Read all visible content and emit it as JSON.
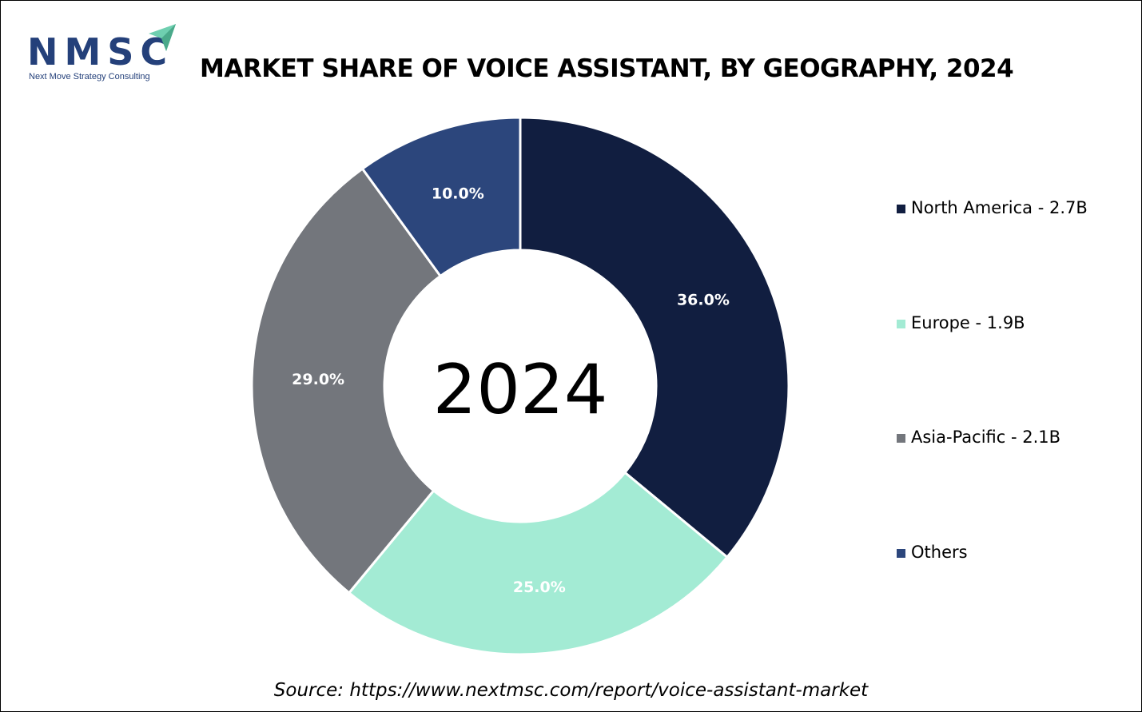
{
  "logo": {
    "name": "NMSC",
    "tagline": "Next Move Strategy Consulting"
  },
  "title": "MARKET SHARE OF VOICE ASSISTANT, BY GEOGRAPHY, 2024",
  "center_label": "2024",
  "source": "Source: https://www.nextmsc.com/report/voice-assistant-market",
  "chart_data": {
    "type": "pie",
    "variant": "donut",
    "title": "MARKET SHARE OF VOICE ASSISTANT, BY GEOGRAPHY, 2024",
    "start_angle_deg": 0,
    "direction": "clockwise",
    "legend_position": "right",
    "slices": [
      {
        "label": "North America - 2.7B",
        "value": 36.0,
        "data_label": "36.0%",
        "color": "#111e40"
      },
      {
        "label": "Europe - 1.9B",
        "value": 25.0,
        "data_label": "25.0%",
        "color": "#a3ebd4"
      },
      {
        "label": "Asia-Pacific - 2.1B",
        "value": 29.0,
        "data_label": "29.0%",
        "color": "#73767c"
      },
      {
        "label": "Others",
        "value": 10.0,
        "data_label": "10.0%",
        "color": "#2c467c"
      }
    ]
  }
}
